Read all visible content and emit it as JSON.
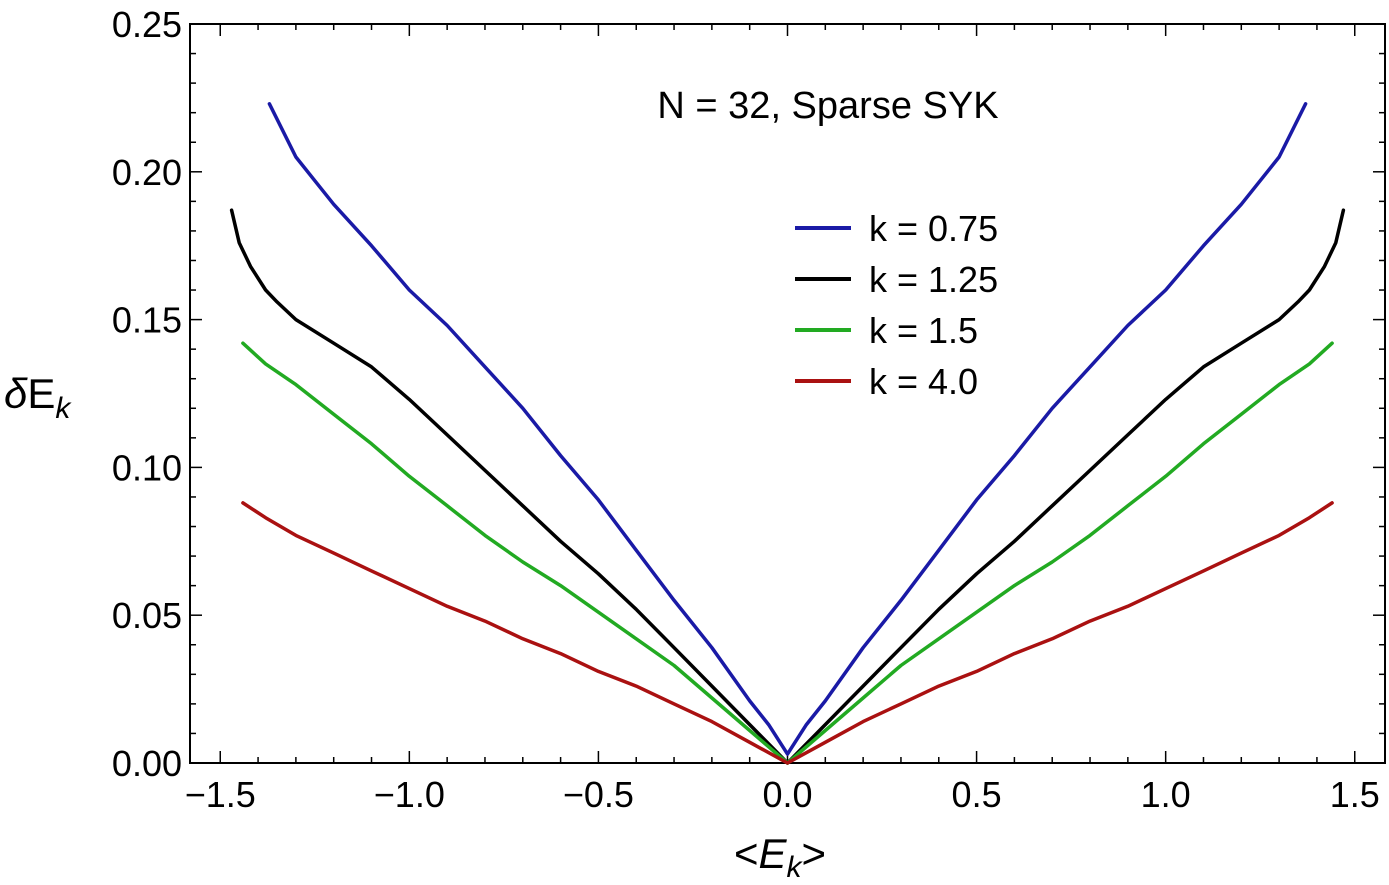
{
  "chart_data": {
    "type": "line",
    "annotation": "N = 32, Sparse SYK",
    "xlabel": {
      "prefix": "<",
      "main": "E",
      "sub": "k",
      "suffix": ">"
    },
    "ylabel": {
      "delta": "δ",
      "main": "E",
      "sub": "k"
    },
    "xlim": [
      -1.58,
      1.58
    ],
    "ylim": [
      0,
      0.25
    ],
    "xticks": [
      -1.5,
      -1.0,
      -0.5,
      0.0,
      0.5,
      1.0,
      1.5
    ],
    "xtick_labels": [
      "−1.5",
      "−1.0",
      "−0.5",
      "0.0",
      "0.5",
      "1.0",
      "1.5"
    ],
    "yticks": [
      0.0,
      0.05,
      0.1,
      0.15,
      0.2,
      0.25
    ],
    "ytick_labels": [
      "0.00",
      "0.05",
      "0.10",
      "0.15",
      "0.20",
      "0.25"
    ],
    "grid": false,
    "legend_position": "upper-right",
    "series": [
      {
        "name": "k = 0.75",
        "color": "#1a1aa6",
        "points": [
          [
            0.0,
            0.003
          ],
          [
            0.05,
            0.013
          ],
          [
            0.1,
            0.021
          ],
          [
            0.2,
            0.039
          ],
          [
            0.3,
            0.055
          ],
          [
            0.4,
            0.072
          ],
          [
            0.5,
            0.089
          ],
          [
            0.6,
            0.104
          ],
          [
            0.7,
            0.12
          ],
          [
            0.8,
            0.134
          ],
          [
            0.9,
            0.148
          ],
          [
            1.0,
            0.16
          ],
          [
            1.1,
            0.175
          ],
          [
            1.2,
            0.189
          ],
          [
            1.25,
            0.197
          ],
          [
            1.3,
            0.205
          ],
          [
            1.37,
            0.223
          ]
        ]
      },
      {
        "name": "k = 1.25",
        "color": "#000000",
        "points": [
          [
            0.0,
            0.0
          ],
          [
            0.1,
            0.013
          ],
          [
            0.2,
            0.026
          ],
          [
            0.3,
            0.039
          ],
          [
            0.4,
            0.052
          ],
          [
            0.5,
            0.064
          ],
          [
            0.6,
            0.075
          ],
          [
            0.7,
            0.087
          ],
          [
            0.8,
            0.099
          ],
          [
            0.9,
            0.111
          ],
          [
            1.0,
            0.123
          ],
          [
            1.1,
            0.134
          ],
          [
            1.2,
            0.142
          ],
          [
            1.3,
            0.15
          ],
          [
            1.35,
            0.156
          ],
          [
            1.38,
            0.16
          ],
          [
            1.42,
            0.168
          ],
          [
            1.45,
            0.176
          ],
          [
            1.47,
            0.187
          ]
        ]
      },
      {
        "name": "k = 1.5",
        "color": "#22aa22",
        "points": [
          [
            0.0,
            0.0
          ],
          [
            0.1,
            0.011
          ],
          [
            0.2,
            0.022
          ],
          [
            0.3,
            0.033
          ],
          [
            0.4,
            0.042
          ],
          [
            0.5,
            0.051
          ],
          [
            0.6,
            0.06
          ],
          [
            0.7,
            0.068
          ],
          [
            0.8,
            0.077
          ],
          [
            0.9,
            0.087
          ],
          [
            1.0,
            0.097
          ],
          [
            1.1,
            0.108
          ],
          [
            1.2,
            0.118
          ],
          [
            1.3,
            0.128
          ],
          [
            1.38,
            0.135
          ],
          [
            1.44,
            0.142
          ]
        ]
      },
      {
        "name": "k = 4.0",
        "color": "#aa1111",
        "points": [
          [
            0.0,
            0.0
          ],
          [
            0.1,
            0.007
          ],
          [
            0.2,
            0.014
          ],
          [
            0.3,
            0.02
          ],
          [
            0.4,
            0.026
          ],
          [
            0.5,
            0.031
          ],
          [
            0.6,
            0.037
          ],
          [
            0.7,
            0.042
          ],
          [
            0.8,
            0.048
          ],
          [
            0.9,
            0.053
          ],
          [
            1.0,
            0.059
          ],
          [
            1.1,
            0.065
          ],
          [
            1.2,
            0.071
          ],
          [
            1.3,
            0.077
          ],
          [
            1.38,
            0.083
          ],
          [
            1.44,
            0.088
          ]
        ]
      }
    ]
  }
}
